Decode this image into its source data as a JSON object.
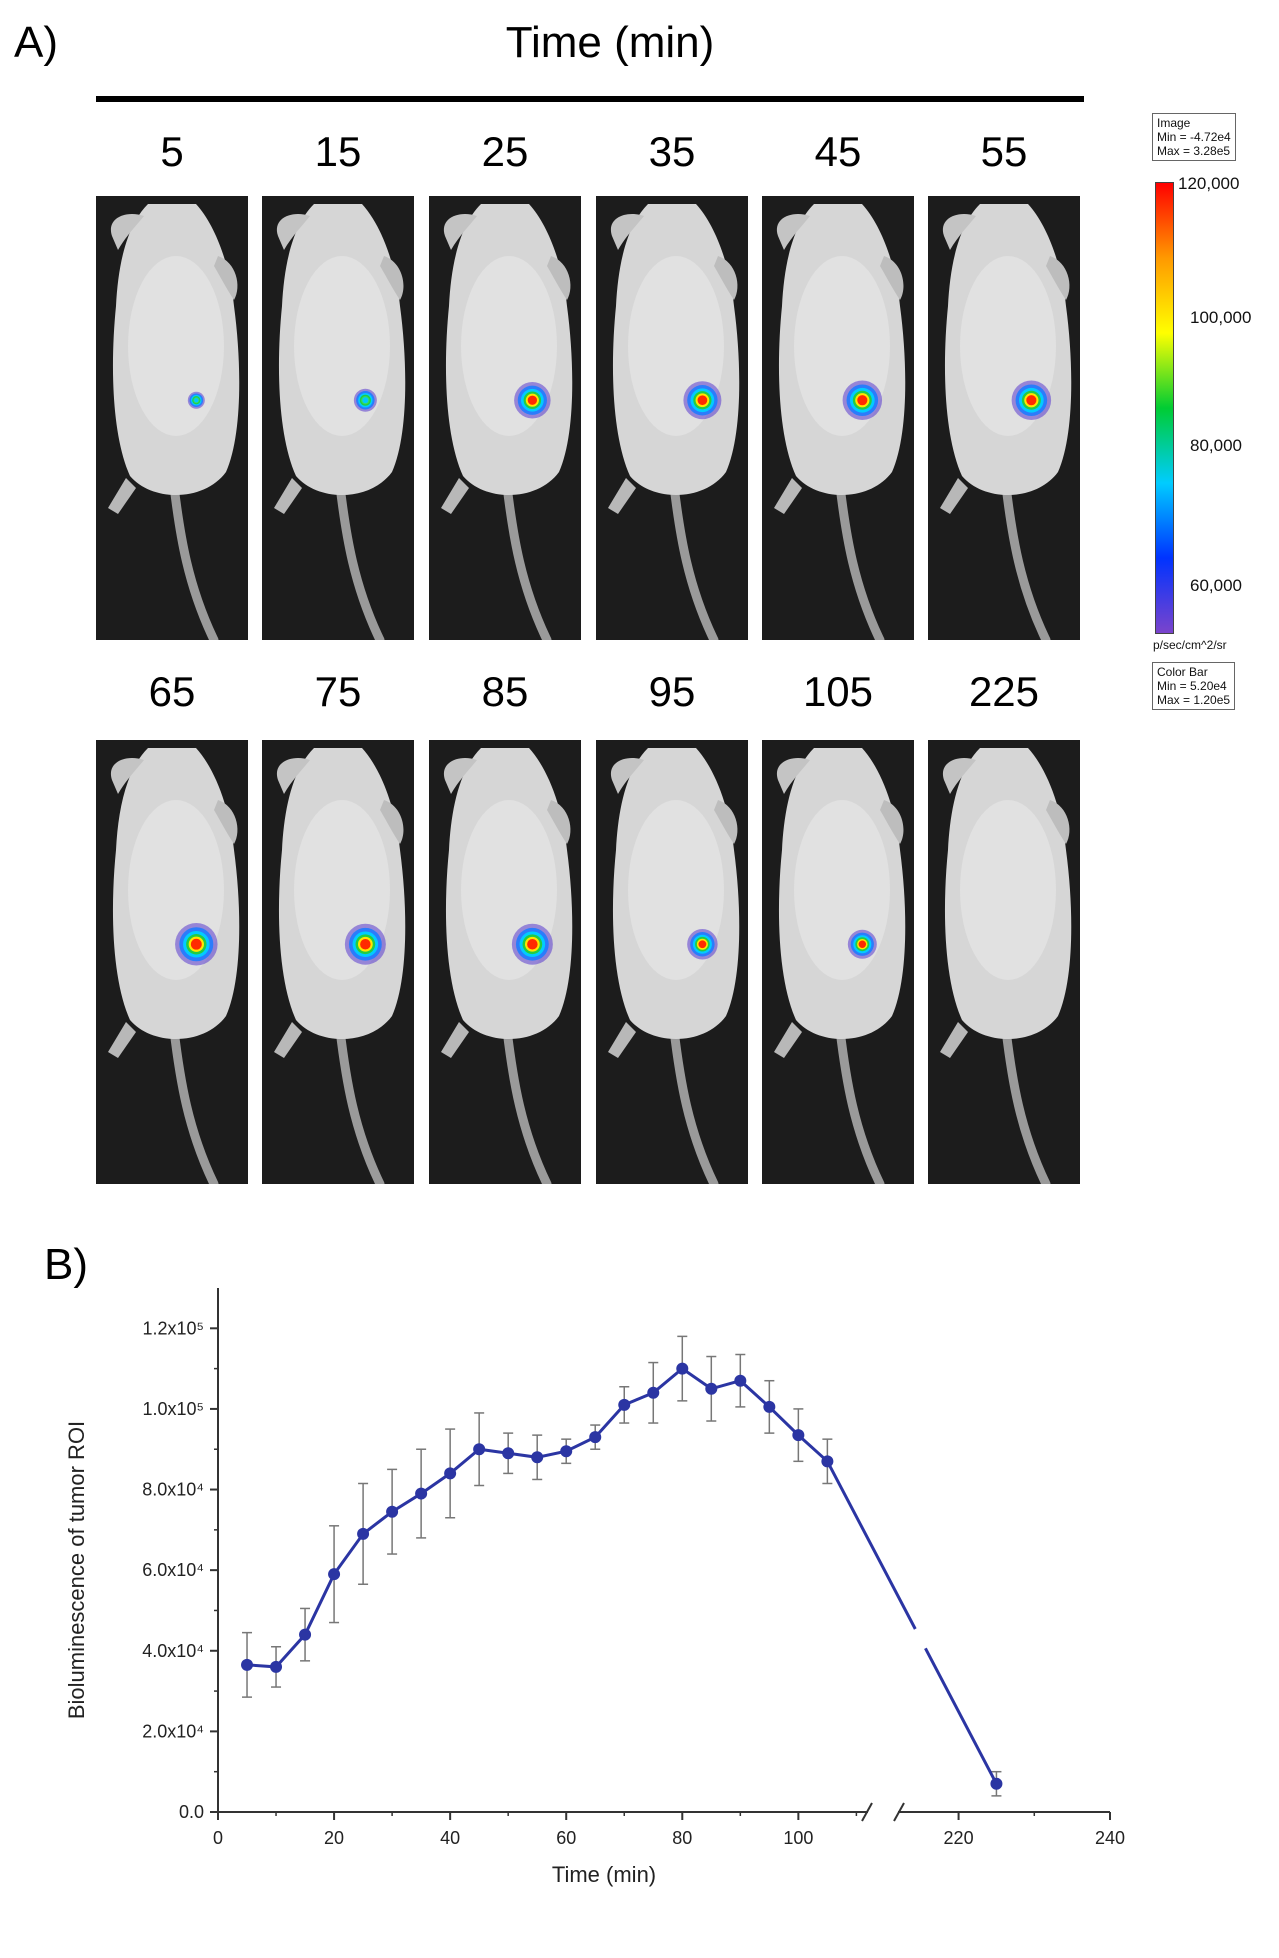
{
  "panelA": {
    "label": "A)",
    "title": "Time (min)",
    "timepoints_row1": [
      "5",
      "15",
      "25",
      "35",
      "45",
      "55"
    ],
    "timepoints_row2": [
      "65",
      "75",
      "85",
      "95",
      "105",
      "225"
    ],
    "signal_level_row1": [
      0.15,
      0.35,
      0.8,
      0.85,
      0.9,
      0.9
    ],
    "signal_level_row2": [
      1.0,
      0.95,
      0.95,
      0.6,
      0.55,
      0.0
    ],
    "colorbar": {
      "image_title": "Image",
      "image_min": "Min = -4.72e4",
      "image_max": "Max = 3.28e5",
      "ticks": [
        "120,000",
        "100,000",
        "80,000",
        "60,000"
      ],
      "unit": "p/sec/cm^2/sr",
      "bar_title": "Color Bar",
      "bar_min": "Min = 5.20e4",
      "bar_max": "Max = 1.20e5",
      "colors": [
        "#ff0000",
        "#ff9900",
        "#ffff00",
        "#00cc33",
        "#00ccff",
        "#0033ff",
        "#7a44cc"
      ]
    }
  },
  "panelB": {
    "label": "B)"
  },
  "chart_data": {
    "type": "line",
    "xlabel": "Time (min)",
    "ylabel": "Bioluminescence of tumor ROI",
    "xlim": [
      0,
      240
    ],
    "ylim": [
      0,
      130000
    ],
    "x_axis_break": [
      112,
      212
    ],
    "x_ticks": [
      0,
      20,
      40,
      60,
      80,
      100,
      220,
      240
    ],
    "x_tick_labels": [
      "0",
      "20",
      "40",
      "60",
      "80",
      "100",
      "220",
      "240"
    ],
    "y_ticks": [
      0,
      20000,
      40000,
      60000,
      80000,
      100000,
      120000
    ],
    "y_tick_labels": [
      "0.0",
      "2.0x10⁴",
      "4.0x10⁴",
      "6.0x10⁴",
      "8.0x10⁴",
      "1.0x10⁵",
      "1.2x10⁵"
    ],
    "line_color": "#2b35a3",
    "errorbar_color": "#777777",
    "series": [
      {
        "x": [
          5,
          10,
          15,
          20,
          25,
          30,
          35,
          40,
          45,
          50,
          55,
          60,
          65,
          70,
          75,
          80,
          85,
          90,
          95,
          100,
          105,
          225
        ],
        "y": [
          36500,
          36000,
          44000,
          59000,
          69000,
          74500,
          79000,
          84000,
          90000,
          89000,
          88000,
          89500,
          93000,
          101000,
          104000,
          110000,
          105000,
          107000,
          100500,
          93500,
          87000,
          7000
        ],
        "err": [
          8000,
          5000,
          6500,
          12000,
          12500,
          10500,
          11000,
          11000,
          9000,
          5000,
          5500,
          3000,
          3000,
          4500,
          7500,
          8000,
          8000,
          6500,
          6500,
          6500,
          5500,
          3000
        ]
      }
    ]
  }
}
